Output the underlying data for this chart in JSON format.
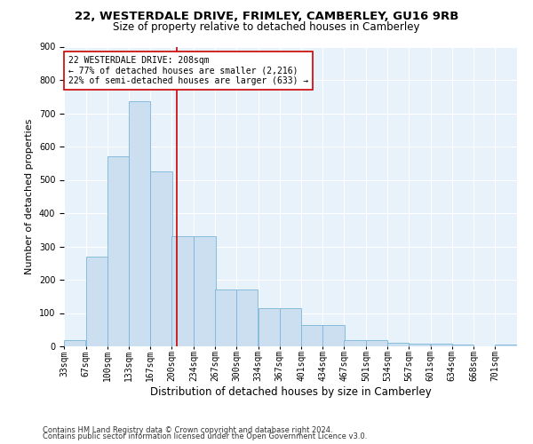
{
  "title1": "22, WESTERDALE DRIVE, FRIMLEY, CAMBERLEY, GU16 9RB",
  "title2": "Size of property relative to detached houses in Camberley",
  "xlabel": "Distribution of detached houses by size in Camberley",
  "ylabel": "Number of detached properties",
  "footnote1": "Contains HM Land Registry data © Crown copyright and database right 2024.",
  "footnote2": "Contains public sector information licensed under the Open Government Licence v3.0.",
  "bins": [
    33,
    67,
    100,
    133,
    167,
    200,
    234,
    267,
    300,
    334,
    367,
    401,
    434,
    467,
    501,
    534,
    567,
    601,
    634,
    668,
    701
  ],
  "values": [
    20,
    270,
    570,
    735,
    525,
    330,
    330,
    170,
    170,
    115,
    115,
    65,
    65,
    20,
    20,
    10,
    8,
    8,
    5,
    0,
    5
  ],
  "bar_facecolor": "#ccdff0",
  "bar_edgecolor": "#7ab5d8",
  "vline_x": 208,
  "vline_color": "#cc0000",
  "annotation_text": "22 WESTERDALE DRIVE: 208sqm\n← 77% of detached houses are smaller (2,216)\n22% of semi-detached houses are larger (633) →",
  "annotation_box_facecolor": "white",
  "annotation_box_edgecolor": "#cc0000",
  "ylim": [
    0,
    900
  ],
  "yticks": [
    0,
    100,
    200,
    300,
    400,
    500,
    600,
    700,
    800,
    900
  ],
  "bg_color": "#e8f2fb",
  "grid_color": "white",
  "title1_fontsize": 9.5,
  "title2_fontsize": 8.5,
  "xlabel_fontsize": 8.5,
  "ylabel_fontsize": 8,
  "tick_fontsize": 7,
  "footnote_fontsize": 6,
  "annotation_fontsize": 7
}
